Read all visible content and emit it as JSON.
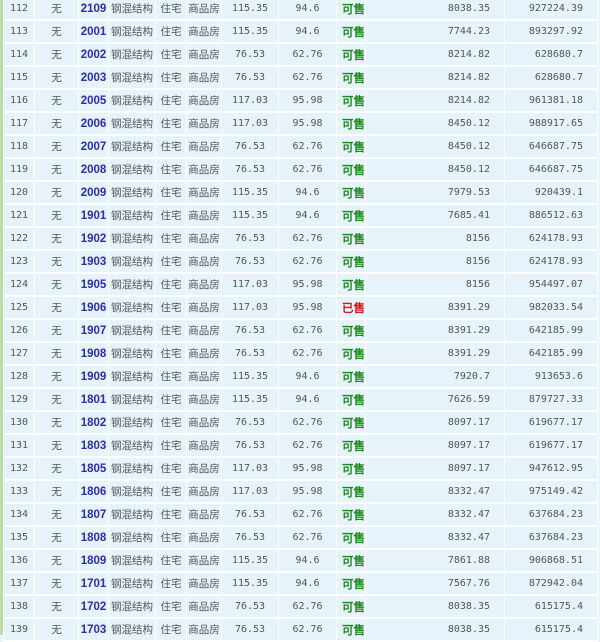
{
  "colors": {
    "available": "#1d8a1d",
    "sold": "#d01818",
    "room": "#2b2bb0"
  },
  "rows": [
    {
      "no": "112",
      "mark": "无",
      "room": "2109",
      "struct": "钢混结构",
      "use": "住宅",
      "type": "商品房",
      "area": "115.35",
      "inner": "94.6",
      "status": "可售",
      "price": "8038.35",
      "total": "927224.39"
    },
    {
      "no": "113",
      "mark": "无",
      "room": "2001",
      "struct": "钢混结构",
      "use": "住宅",
      "type": "商品房",
      "area": "115.35",
      "inner": "94.6",
      "status": "可售",
      "price": "7744.23",
      "total": "893297.92"
    },
    {
      "no": "114",
      "mark": "无",
      "room": "2002",
      "struct": "钢混结构",
      "use": "住宅",
      "type": "商品房",
      "area": "76.53",
      "inner": "62.76",
      "status": "可售",
      "price": "8214.82",
      "total": "628680.7"
    },
    {
      "no": "115",
      "mark": "无",
      "room": "2003",
      "struct": "钢混结构",
      "use": "住宅",
      "type": "商品房",
      "area": "76.53",
      "inner": "62.76",
      "status": "可售",
      "price": "8214.82",
      "total": "628680.7"
    },
    {
      "no": "116",
      "mark": "无",
      "room": "2005",
      "struct": "钢混结构",
      "use": "住宅",
      "type": "商品房",
      "area": "117.03",
      "inner": "95.98",
      "status": "可售",
      "price": "8214.82",
      "total": "961381.18"
    },
    {
      "no": "117",
      "mark": "无",
      "room": "2006",
      "struct": "钢混结构",
      "use": "住宅",
      "type": "商品房",
      "area": "117.03",
      "inner": "95.98",
      "status": "可售",
      "price": "8450.12",
      "total": "988917.65"
    },
    {
      "no": "118",
      "mark": "无",
      "room": "2007",
      "struct": "钢混结构",
      "use": "住宅",
      "type": "商品房",
      "area": "76.53",
      "inner": "62.76",
      "status": "可售",
      "price": "8450.12",
      "total": "646687.75"
    },
    {
      "no": "119",
      "mark": "无",
      "room": "2008",
      "struct": "钢混结构",
      "use": "住宅",
      "type": "商品房",
      "area": "76.53",
      "inner": "62.76",
      "status": "可售",
      "price": "8450.12",
      "total": "646687.75"
    },
    {
      "no": "120",
      "mark": "无",
      "room": "2009",
      "struct": "钢混结构",
      "use": "住宅",
      "type": "商品房",
      "area": "115.35",
      "inner": "94.6",
      "status": "可售",
      "price": "7979.53",
      "total": "920439.1"
    },
    {
      "no": "121",
      "mark": "无",
      "room": "1901",
      "struct": "钢混结构",
      "use": "住宅",
      "type": "商品房",
      "area": "115.35",
      "inner": "94.6",
      "status": "可售",
      "price": "7685.41",
      "total": "886512.63"
    },
    {
      "no": "122",
      "mark": "无",
      "room": "1902",
      "struct": "钢混结构",
      "use": "住宅",
      "type": "商品房",
      "area": "76.53",
      "inner": "62.76",
      "status": "可售",
      "price": "8156",
      "total": "624178.93"
    },
    {
      "no": "123",
      "mark": "无",
      "room": "1903",
      "struct": "钢混结构",
      "use": "住宅",
      "type": "商品房",
      "area": "76.53",
      "inner": "62.76",
      "status": "可售",
      "price": "8156",
      "total": "624178.93"
    },
    {
      "no": "124",
      "mark": "无",
      "room": "1905",
      "struct": "钢混结构",
      "use": "住宅",
      "type": "商品房",
      "area": "117.03",
      "inner": "95.98",
      "status": "可售",
      "price": "8156",
      "total": "954497.07"
    },
    {
      "no": "125",
      "mark": "无",
      "room": "1906",
      "struct": "钢混结构",
      "use": "住宅",
      "type": "商品房",
      "area": "117.03",
      "inner": "95.98",
      "status": "已售",
      "price": "8391.29",
      "total": "982033.54"
    },
    {
      "no": "126",
      "mark": "无",
      "room": "1907",
      "struct": "钢混结构",
      "use": "住宅",
      "type": "商品房",
      "area": "76.53",
      "inner": "62.76",
      "status": "可售",
      "price": "8391.29",
      "total": "642185.99"
    },
    {
      "no": "127",
      "mark": "无",
      "room": "1908",
      "struct": "钢混结构",
      "use": "住宅",
      "type": "商品房",
      "area": "76.53",
      "inner": "62.76",
      "status": "可售",
      "price": "8391.29",
      "total": "642185.99"
    },
    {
      "no": "128",
      "mark": "无",
      "room": "1909",
      "struct": "钢混结构",
      "use": "住宅",
      "type": "商品房",
      "area": "115.35",
      "inner": "94.6",
      "status": "可售",
      "price": "7920.7",
      "total": "913653.6"
    },
    {
      "no": "129",
      "mark": "无",
      "room": "1801",
      "struct": "钢混结构",
      "use": "住宅",
      "type": "商品房",
      "area": "115.35",
      "inner": "94.6",
      "status": "可售",
      "price": "7626.59",
      "total": "879727.33"
    },
    {
      "no": "130",
      "mark": "无",
      "room": "1802",
      "struct": "钢混结构",
      "use": "住宅",
      "type": "商品房",
      "area": "76.53",
      "inner": "62.76",
      "status": "可售",
      "price": "8097.17",
      "total": "619677.17"
    },
    {
      "no": "131",
      "mark": "无",
      "room": "1803",
      "struct": "钢混结构",
      "use": "住宅",
      "type": "商品房",
      "area": "76.53",
      "inner": "62.76",
      "status": "可售",
      "price": "8097.17",
      "total": "619677.17"
    },
    {
      "no": "132",
      "mark": "无",
      "room": "1805",
      "struct": "钢混结构",
      "use": "住宅",
      "type": "商品房",
      "area": "117.03",
      "inner": "95.98",
      "status": "可售",
      "price": "8097.17",
      "total": "947612.95"
    },
    {
      "no": "133",
      "mark": "无",
      "room": "1806",
      "struct": "钢混结构",
      "use": "住宅",
      "type": "商品房",
      "area": "117.03",
      "inner": "95.98",
      "status": "可售",
      "price": "8332.47",
      "total": "975149.42"
    },
    {
      "no": "134",
      "mark": "无",
      "room": "1807",
      "struct": "钢混结构",
      "use": "住宅",
      "type": "商品房",
      "area": "76.53",
      "inner": "62.76",
      "status": "可售",
      "price": "8332.47",
      "total": "637684.23"
    },
    {
      "no": "135",
      "mark": "无",
      "room": "1808",
      "struct": "钢混结构",
      "use": "住宅",
      "type": "商品房",
      "area": "76.53",
      "inner": "62.76",
      "status": "可售",
      "price": "8332.47",
      "total": "637684.23"
    },
    {
      "no": "136",
      "mark": "无",
      "room": "1809",
      "struct": "钢混结构",
      "use": "住宅",
      "type": "商品房",
      "area": "115.35",
      "inner": "94.6",
      "status": "可售",
      "price": "7861.88",
      "total": "906868.51"
    },
    {
      "no": "137",
      "mark": "无",
      "room": "1701",
      "struct": "钢混结构",
      "use": "住宅",
      "type": "商品房",
      "area": "115.35",
      "inner": "94.6",
      "status": "可售",
      "price": "7567.76",
      "total": "872942.04"
    },
    {
      "no": "138",
      "mark": "无",
      "room": "1702",
      "struct": "钢混结构",
      "use": "住宅",
      "type": "商品房",
      "area": "76.53",
      "inner": "62.76",
      "status": "可售",
      "price": "8038.35",
      "total": "615175.4"
    },
    {
      "no": "139",
      "mark": "无",
      "room": "1703",
      "struct": "钢混结构",
      "use": "住宅",
      "type": "商品房",
      "area": "76.53",
      "inner": "62.76",
      "status": "可售",
      "price": "8038.35",
      "total": "615175.4"
    }
  ]
}
